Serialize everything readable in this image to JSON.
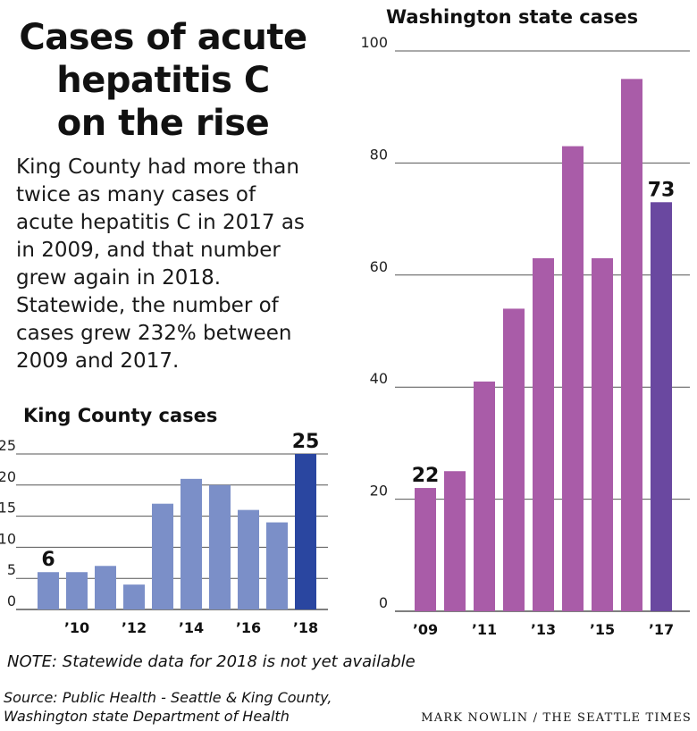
{
  "headline": [
    "Cases of acute",
    "hepatitis C",
    "on the rise"
  ],
  "intro": [
    "King County had more than",
    "twice as many cases of",
    "acute hepatitis C in 2017 as",
    "in 2009, and that number",
    "grew again in 2018.",
    "Statewide, the number of",
    "cases grew 232% between",
    "2009 and 2017."
  ],
  "note": "NOTE: Statewide data for 2018 is not yet available",
  "source": [
    "Source: Public Health - Seattle & King County,",
    "Washington state Department of Health"
  ],
  "credit": "MARK NOWLIN / THE SEATTLE TIMES",
  "colors": {
    "king_bar": "#7b8fc8",
    "king_highlight": "#2a46a0",
    "wa_bar": "#a95ca8",
    "wa_highlight": "#6a48a0",
    "gridline": "#555555"
  },
  "chart_data": [
    {
      "id": "king",
      "type": "bar",
      "title": "King County cases",
      "categories": [
        "2009",
        "2010",
        "2011",
        "2012",
        "2013",
        "2014",
        "2015",
        "2016",
        "2017",
        "2018"
      ],
      "values": [
        6,
        6,
        7,
        4,
        17,
        21,
        20,
        16,
        14,
        25
      ],
      "x_tick_labels": [
        "",
        "’10",
        "",
        "’12",
        "",
        "’14",
        "",
        "’16",
        "",
        "’18"
      ],
      "y_ticks": [
        "0",
        "5",
        "10",
        "15",
        "20",
        "25"
      ],
      "ylim": [
        0,
        25
      ],
      "data_labels": [
        {
          "index": 0,
          "text": "6"
        },
        {
          "index": 9,
          "text": "25"
        }
      ],
      "highlight_index": 9,
      "grid": true
    },
    {
      "id": "wa",
      "type": "bar",
      "title": "Washington state cases",
      "categories": [
        "2009",
        "2010",
        "2011",
        "2012",
        "2013",
        "2014",
        "2015",
        "2016",
        "2017"
      ],
      "values": [
        22,
        25,
        41,
        54,
        63,
        83,
        63,
        95,
        73
      ],
      "x_tick_labels": [
        "’09",
        "",
        "’11",
        "",
        "’13",
        "",
        "’15",
        "",
        "’17"
      ],
      "y_ticks": [
        "0",
        "20",
        "40",
        "60",
        "80",
        "100"
      ],
      "ylim": [
        0,
        100
      ],
      "data_labels": [
        {
          "index": 0,
          "text": "22"
        },
        {
          "index": 8,
          "text": "73"
        }
      ],
      "highlight_index": 8,
      "grid": true
    }
  ]
}
